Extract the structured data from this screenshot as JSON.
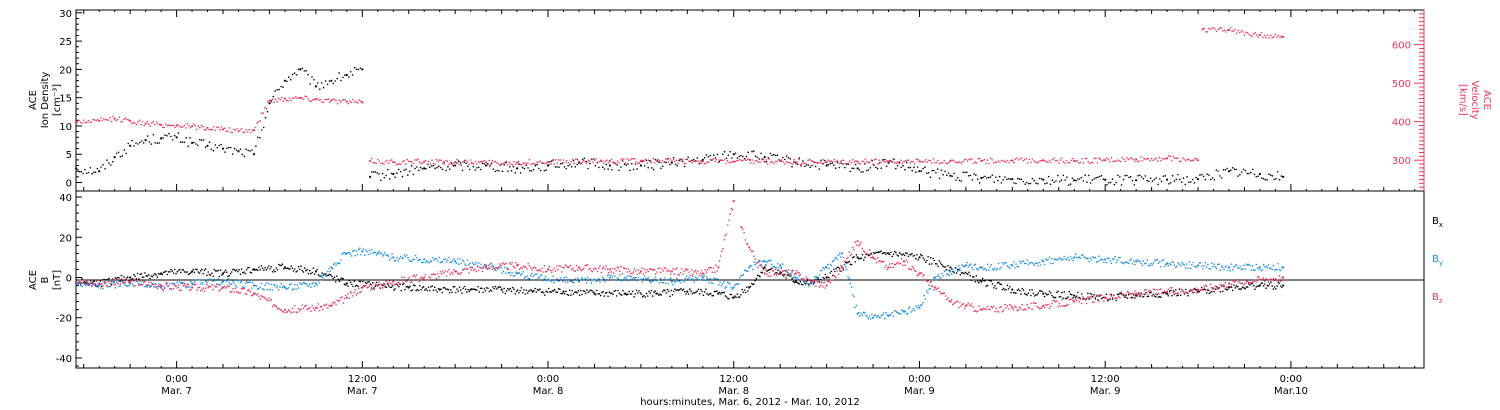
{
  "colors": {
    "black": "#000000",
    "pink": "#e8365e",
    "blue": "#1a8fe3"
  },
  "x_axis": {
    "title": "hours:minutes, Mar.  6, 2012 - Mar. 10, 2012",
    "ticks": [
      {
        "time": "0:00",
        "date": "Mar. 7",
        "hour": 24
      },
      {
        "time": "12:00",
        "date": "Mar. 7",
        "hour": 36
      },
      {
        "time": "0:00",
        "date": "Mar. 8",
        "hour": 48
      },
      {
        "time": "12:00",
        "date": "Mar. 8",
        "hour": 60
      },
      {
        "time": "0:00",
        "date": "Mar. 9",
        "hour": 72
      },
      {
        "time": "12:00",
        "date": "Mar. 9",
        "hour": 84
      },
      {
        "time": "0:00",
        "date": "Mar.10",
        "hour": 96
      }
    ]
  },
  "panel1": {
    "left_label": [
      "ACE",
      "Ion Density",
      "[cm⁻³]"
    ],
    "right_label": [
      "ACE",
      "Velocity",
      "[km/s]"
    ],
    "left_ticks": [
      "0",
      "5",
      "10",
      "15",
      "20",
      "25",
      "30"
    ],
    "right_ticks": [
      "300",
      "400",
      "500",
      "600"
    ]
  },
  "panel2": {
    "left_label": [
      "ACE",
      "B",
      "[nT]"
    ],
    "left_ticks": [
      "-40",
      "-20",
      "0",
      "20",
      "40"
    ],
    "legend": [
      {
        "label": "B",
        "sub": "x",
        "color": "#000000"
      },
      {
        "label": "B",
        "sub": "y",
        "color": "#1a8fe3"
      },
      {
        "label": "B",
        "sub": "z",
        "color": "#e8365e"
      }
    ]
  },
  "chart_data": [
    {
      "type": "scatter",
      "title": "",
      "xlabel": "hours:minutes, Mar.  6, 2012 - Mar. 10, 2012",
      "ylabel": "ACE Ion Density [cm⁻³]",
      "y2label": "ACE Velocity [km/s]",
      "xlim_hours_from_mar6": [
        17.5,
        104.6
      ],
      "ylim": [
        -1.5,
        30.5
      ],
      "y2lim": [
        220,
        690
      ],
      "series": [
        {
          "name": "Ion Density",
          "axis": "left",
          "color": "#000000",
          "points": [
            [
              17.5,
              2.5
            ],
            [
              19,
              2.0
            ],
            [
              20,
              4.5
            ],
            [
              21,
              6.5
            ],
            [
              22,
              7.5
            ],
            [
              23,
              7.8
            ],
            [
              24,
              8.0
            ],
            [
              25,
              7.0
            ],
            [
              26,
              6.5
            ],
            [
              27,
              6.0
            ],
            [
              28,
              5.5
            ],
            [
              29,
              5.0
            ],
            [
              30,
              14
            ],
            [
              31,
              18
            ],
            [
              32,
              20
            ],
            [
              33,
              17
            ],
            [
              34,
              18
            ],
            [
              35,
              19
            ],
            [
              36,
              20
            ],
            [
              36.5,
              1.0
            ],
            [
              38,
              1.5
            ],
            [
              40,
              2.5
            ],
            [
              42,
              3.0
            ],
            [
              44,
              3.0
            ],
            [
              46,
              2.5
            ],
            [
              48,
              3.0
            ],
            [
              50,
              3.5
            ],
            [
              52,
              3.0
            ],
            [
              54,
              3.0
            ],
            [
              56,
              3.5
            ],
            [
              58,
              4.0
            ],
            [
              60,
              5.0
            ],
            [
              62,
              4.5
            ],
            [
              64,
              3.5
            ],
            [
              66,
              3.0
            ],
            [
              68,
              2.5
            ],
            [
              70,
              3.5
            ],
            [
              72,
              2.0
            ],
            [
              74,
              1.2
            ],
            [
              76,
              0.8
            ],
            [
              78,
              0.6
            ],
            [
              80,
              0.5
            ],
            [
              82,
              0.4
            ],
            [
              84,
              0.5
            ],
            [
              86,
              0.4
            ],
            [
              88,
              0.5
            ],
            [
              90,
              0.6
            ],
            [
              92,
              2.0
            ],
            [
              94,
              1.5
            ],
            [
              95.5,
              1.0
            ]
          ]
        },
        {
          "name": "Velocity",
          "axis": "right",
          "color": "#e8365e",
          "points": [
            [
              17.5,
              400
            ],
            [
              19,
              402
            ],
            [
              20,
              408
            ],
            [
              21,
              402
            ],
            [
              22,
              395
            ],
            [
              23,
              392
            ],
            [
              24,
              390
            ],
            [
              25,
              388
            ],
            [
              26,
              384
            ],
            [
              27,
              380
            ],
            [
              28,
              375
            ],
            [
              29,
              378
            ],
            [
              30,
              455
            ],
            [
              31,
              460
            ],
            [
              32,
              462
            ],
            [
              33,
              458
            ],
            [
              34,
              455
            ],
            [
              35,
              452
            ],
            [
              36,
              450
            ],
            [
              36.5,
              298
            ],
            [
              38,
              295
            ],
            [
              40,
              296
            ],
            [
              42,
              295
            ],
            [
              44,
              294
            ],
            [
              46,
              294
            ],
            [
              48,
              295
            ],
            [
              50,
              296
            ],
            [
              52,
              298
            ],
            [
              54,
              298
            ],
            [
              56,
              297
            ],
            [
              58,
              297
            ],
            [
              60,
              296
            ],
            [
              62,
              296
            ],
            [
              64,
              295
            ],
            [
              66,
              295
            ],
            [
              68,
              296
            ],
            [
              70,
              297
            ],
            [
              72,
              297
            ],
            [
              74,
              298
            ],
            [
              76,
              298
            ],
            [
              78,
              299
            ],
            [
              80,
              300
            ],
            [
              82,
              298
            ],
            [
              84,
              300
            ],
            [
              86,
              302
            ],
            [
              88,
              305
            ],
            [
              90,
              300
            ],
            [
              90.3,
              640
            ],
            [
              92,
              638
            ],
            [
              94,
              625
            ],
            [
              95.5,
              620
            ]
          ]
        }
      ]
    },
    {
      "type": "scatter",
      "title": "",
      "xlabel": "hours:minutes, Mar.  6, 2012 - Mar. 10, 2012",
      "ylabel": "ACE B [nT]",
      "xlim_hours_from_mar6": [
        17.5,
        104.6
      ],
      "ylim": [
        -45,
        43
      ],
      "series": [
        {
          "name": "Bx",
          "color": "#000000",
          "points": [
            [
              17.5,
              -2
            ],
            [
              19,
              -3
            ],
            [
              21,
              0
            ],
            [
              23,
              2
            ],
            [
              25,
              3
            ],
            [
              27,
              2
            ],
            [
              29,
              4
            ],
            [
              31,
              5
            ],
            [
              33,
              3
            ],
            [
              35,
              -3
            ],
            [
              37,
              -4
            ],
            [
              39,
              -5
            ],
            [
              41,
              -6
            ],
            [
              43,
              -6
            ],
            [
              45,
              -6
            ],
            [
              47,
              -7
            ],
            [
              49,
              -7
            ],
            [
              51,
              -8
            ],
            [
              53,
              -8
            ],
            [
              55,
              -8
            ],
            [
              57,
              -7
            ],
            [
              59,
              -8
            ],
            [
              60,
              -10
            ],
            [
              61,
              -5
            ],
            [
              62,
              5
            ],
            [
              63,
              2
            ],
            [
              64,
              -2
            ],
            [
              65,
              -3
            ],
            [
              66,
              0
            ],
            [
              67,
              5
            ],
            [
              68,
              10
            ],
            [
              70,
              12
            ],
            [
              72,
              10
            ],
            [
              74,
              5
            ],
            [
              76,
              -2
            ],
            [
              78,
              -6
            ],
            [
              80,
              -8
            ],
            [
              82,
              -9
            ],
            [
              84,
              -10
            ],
            [
              86,
              -9
            ],
            [
              88,
              -8
            ],
            [
              90,
              -7
            ],
            [
              92,
              -5
            ],
            [
              94,
              -4
            ],
            [
              95.5,
              -4
            ]
          ]
        },
        {
          "name": "By",
          "color": "#1a8fe3",
          "points": [
            [
              17.5,
              -3
            ],
            [
              19,
              -4
            ],
            [
              21,
              -3
            ],
            [
              23,
              -5
            ],
            [
              25,
              -3
            ],
            [
              27,
              -2
            ],
            [
              29,
              -4
            ],
            [
              31,
              -5
            ],
            [
              33,
              -3
            ],
            [
              34,
              5
            ],
            [
              35,
              12
            ],
            [
              36,
              13
            ],
            [
              37,
              12
            ],
            [
              38,
              10
            ],
            [
              40,
              9
            ],
            [
              42,
              8
            ],
            [
              44,
              6
            ],
            [
              46,
              2
            ],
            [
              48,
              -1
            ],
            [
              50,
              -2
            ],
            [
              52,
              0
            ],
            [
              54,
              -1
            ],
            [
              56,
              -2
            ],
            [
              58,
              0
            ],
            [
              60,
              -5
            ],
            [
              61,
              5
            ],
            [
              62,
              8
            ],
            [
              63,
              6
            ],
            [
              64,
              0
            ],
            [
              65,
              -3
            ],
            [
              66,
              5
            ],
            [
              67,
              12
            ],
            [
              68,
              -18
            ],
            [
              69,
              -20
            ],
            [
              70,
              -19
            ],
            [
              71,
              -17
            ],
            [
              72,
              -15
            ],
            [
              73,
              0
            ],
            [
              74,
              3
            ],
            [
              75,
              6
            ],
            [
              76,
              5
            ],
            [
              78,
              6
            ],
            [
              80,
              8
            ],
            [
              82,
              10
            ],
            [
              84,
              9
            ],
            [
              86,
              8
            ],
            [
              88,
              7
            ],
            [
              90,
              6
            ],
            [
              92,
              5
            ],
            [
              94,
              5
            ],
            [
              95.5,
              5
            ]
          ]
        },
        {
          "name": "Bz",
          "color": "#e8365e",
          "points": [
            [
              17.5,
              -2
            ],
            [
              19,
              -3
            ],
            [
              21,
              -2
            ],
            [
              23,
              -4
            ],
            [
              25,
              -5
            ],
            [
              27,
              -5
            ],
            [
              29,
              -8
            ],
            [
              31,
              -16
            ],
            [
              33,
              -15
            ],
            [
              34,
              -14
            ],
            [
              35,
              -10
            ],
            [
              36,
              -5
            ],
            [
              37,
              -4
            ],
            [
              38,
              -2
            ],
            [
              40,
              0
            ],
            [
              42,
              3
            ],
            [
              44,
              5
            ],
            [
              46,
              6
            ],
            [
              48,
              4
            ],
            [
              50,
              5
            ],
            [
              52,
              4
            ],
            [
              54,
              3
            ],
            [
              56,
              3
            ],
            [
              58,
              2
            ],
            [
              59,
              5
            ],
            [
              60,
              38
            ],
            [
              60.5,
              25
            ],
            [
              61,
              15
            ],
            [
              62,
              2
            ],
            [
              63,
              3
            ],
            [
              64,
              2
            ],
            [
              65,
              -2
            ],
            [
              66,
              -4
            ],
            [
              67,
              5
            ],
            [
              68,
              18
            ],
            [
              69,
              10
            ],
            [
              70,
              5
            ],
            [
              71,
              8
            ],
            [
              72,
              2
            ],
            [
              73,
              -5
            ],
            [
              74,
              -12
            ],
            [
              75,
              -14
            ],
            [
              76,
              -16
            ],
            [
              78,
              -15
            ],
            [
              80,
              -14
            ],
            [
              82,
              -12
            ],
            [
              84,
              -10
            ],
            [
              86,
              -8
            ],
            [
              88,
              -7
            ],
            [
              90,
              -6
            ],
            [
              92,
              -3
            ],
            [
              94,
              -1
            ],
            [
              95.5,
              0
            ]
          ]
        }
      ]
    }
  ]
}
